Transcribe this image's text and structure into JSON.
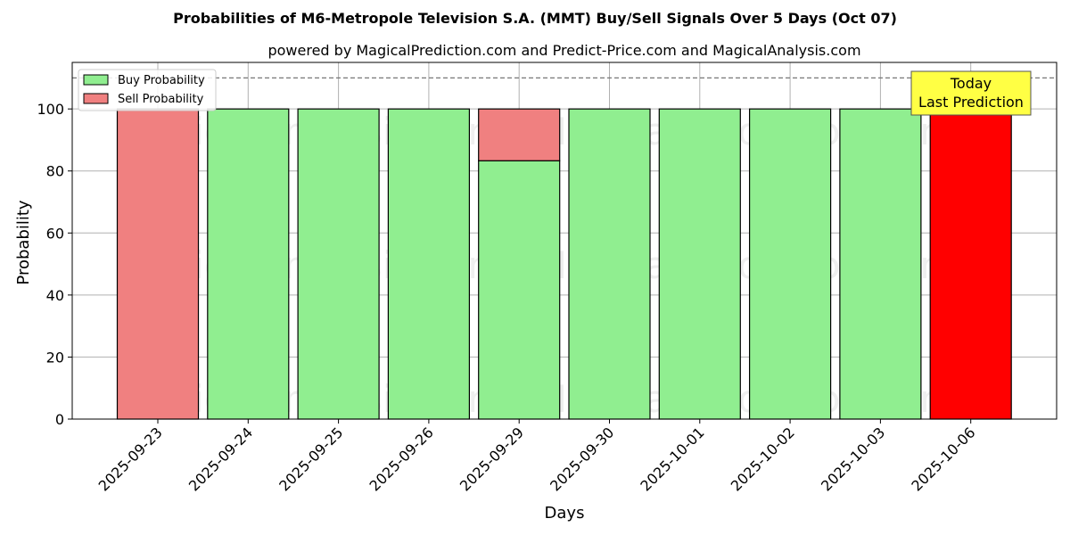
{
  "chart_data": {
    "type": "bar",
    "stacked": true,
    "title": "Probabilities of M6-Metropole Television S.A. (MMT) Buy/Sell Signals Over 5 Days (Oct 07)",
    "subtitle": "powered by MagicalPrediction.com and Predict-Price.com and MagicalAnalysis.com",
    "xlabel": "Days",
    "ylabel": "Probability",
    "ylim": [
      0,
      115
    ],
    "yticks": [
      0,
      20,
      40,
      60,
      80,
      100
    ],
    "grid": true,
    "legend_position": "top-left",
    "reference_line": 110,
    "categories": [
      "2025-09-23",
      "2025-09-24",
      "2025-09-25",
      "2025-09-26",
      "2025-09-29",
      "2025-09-30",
      "2025-10-01",
      "2025-10-02",
      "2025-10-03",
      "2025-10-06"
    ],
    "series": [
      {
        "name": "Buy Probability",
        "color": "#90ee90",
        "values": [
          0,
          100,
          100,
          100,
          83.3,
          100,
          100,
          100,
          100,
          0
        ]
      },
      {
        "name": "Sell Probability",
        "color": "#f08080",
        "values": [
          100,
          0,
          0,
          0,
          16.7,
          0,
          0,
          0,
          0,
          100
        ]
      }
    ],
    "highlight": {
      "category_index": 9,
      "color": "#ff0000"
    },
    "annotation": {
      "line1": "Today",
      "line2": "Last Prediction",
      "background": "#ffff44"
    },
    "watermarks": [
      "MagicalAnalysis.com",
      "MagicalPrediction.com"
    ]
  }
}
